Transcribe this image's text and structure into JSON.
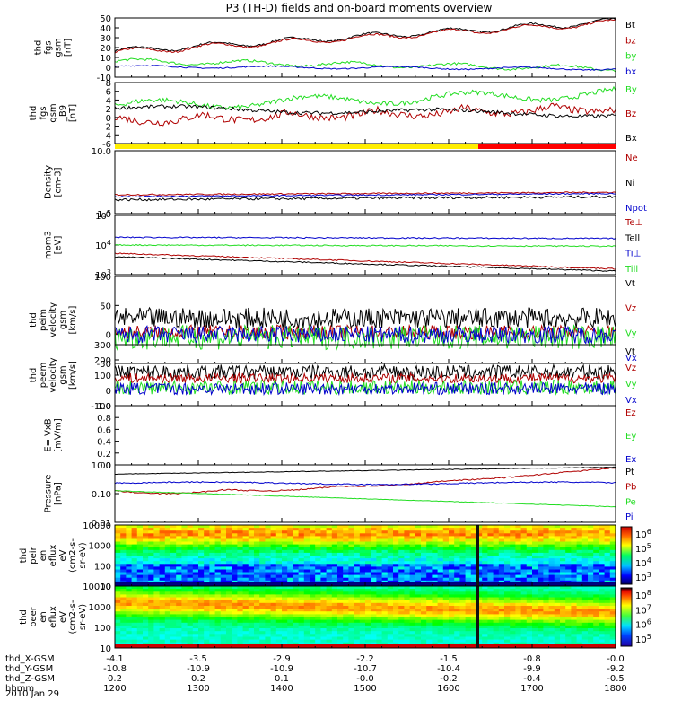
{
  "title": "P3 (TH-D) fields and on-board moments overview",
  "date_label": "2010 Jan 29",
  "colors": {
    "black": "#000000",
    "red": "#b00000",
    "bright_red": "#ff0000",
    "green": "#22dd22",
    "blue": "#0000cc",
    "yellow": "#ffee00"
  },
  "chart_data": [
    {
      "type": "line",
      "ylabel_lines": [
        "thd",
        "fgs",
        "gsm",
        "[nT]"
      ],
      "ylim": [
        -10,
        50
      ],
      "yticks": [
        "50",
        "40",
        "30",
        "20",
        "10",
        "0",
        "-10"
      ],
      "series": [
        {
          "name": "Bt",
          "color": "#000000"
        },
        {
          "name": "bz",
          "color": "#b00000"
        },
        {
          "name": "by",
          "color": "#22dd22"
        },
        {
          "name": "bx",
          "color": "#0000cc"
        }
      ]
    },
    {
      "type": "line",
      "ylabel_lines": [
        "thd",
        "fgs",
        "gsm",
        "_B9",
        "[nT]"
      ],
      "ylim": [
        -7,
        8
      ],
      "yticks": [
        "8",
        "6",
        "4",
        "2",
        "0",
        "-2",
        "-4",
        "-6"
      ],
      "series": [
        {
          "name": "By",
          "color": "#22dd22"
        },
        {
          "name": "Bz",
          "color": "#b00000"
        },
        {
          "name": "Bx",
          "color": "#000000"
        }
      ]
    },
    {
      "type": "line",
      "log": true,
      "ylabel_lines": [
        "Density",
        "[cm-3]"
      ],
      "ylim": [
        0.15,
        14
      ],
      "yticks": [
        "10.0",
        "1.0"
      ],
      "series": [
        {
          "name": "Ne",
          "color": "#b00000"
        },
        {
          "name": "Ni",
          "color": "#000000"
        },
        {
          "name": "Npot",
          "color": "#0000cc"
        }
      ]
    },
    {
      "type": "line",
      "log": true,
      "ylabel_lines": [
        "mom3",
        "[eV]"
      ],
      "ylim": [
        400,
        100000
      ],
      "yticks": [
        "10^5",
        "10^4",
        "10^3"
      ],
      "series": [
        {
          "name": "Te⊥",
          "color": "#b00000"
        },
        {
          "name": "Tell",
          "color": "#000000"
        },
        {
          "name": "Ti⊥",
          "color": "#0000cc"
        },
        {
          "name": "Till",
          "color": "#22dd22"
        }
      ]
    },
    {
      "type": "line",
      "ylabel_lines": [
        "thd",
        "peim",
        "velocity",
        "gsm",
        "[km/s]"
      ],
      "ylim": [
        -50,
        100
      ],
      "yticks": [
        "100",
        "50",
        "0",
        "-50"
      ],
      "series": [
        {
          "name": "Vt",
          "color": "#000000"
        },
        {
          "name": "Vz",
          "color": "#b00000"
        },
        {
          "name": "Vy",
          "color": "#22dd22"
        },
        {
          "name": "Vx",
          "color": "#0000cc"
        }
      ]
    },
    {
      "type": "line",
      "ylabel_lines": [
        "thd",
        "peem",
        "velocity",
        "gsm",
        "[km/s]"
      ],
      "ylim": [
        -100,
        300
      ],
      "yticks": [
        "300",
        "200",
        "100",
        "0",
        "-100"
      ],
      "series": [
        {
          "name": "Vt",
          "color": "#000000"
        },
        {
          "name": "Vz",
          "color": "#b00000"
        },
        {
          "name": "Vy",
          "color": "#22dd22"
        },
        {
          "name": "Vx",
          "color": "#0000cc"
        }
      ]
    },
    {
      "type": "line",
      "ylabel_lines": [
        "E=-VxB",
        "[mV/m]"
      ],
      "ylim": [
        0,
        1
      ],
      "yticks": [
        "1.0",
        "0.8",
        "0.6",
        "0.4",
        "0.2",
        "0.0"
      ],
      "series": [
        {
          "name": "Ez",
          "color": "#b00000"
        },
        {
          "name": "Ey",
          "color": "#22dd22"
        },
        {
          "name": "Ex",
          "color": "#0000cc"
        }
      ]
    },
    {
      "type": "line",
      "log": true,
      "ylabel_lines": [
        "Pressure",
        "[nPa]"
      ],
      "ylim": [
        0.01,
        1.2
      ],
      "yticks": [
        "1.00",
        "0.10",
        "0.01"
      ],
      "series": [
        {
          "name": "Pt",
          "color": "#000000"
        },
        {
          "name": "Pb",
          "color": "#b00000"
        },
        {
          "name": "Pe",
          "color": "#22dd22"
        },
        {
          "name": "Pi",
          "color": "#0000cc"
        }
      ]
    },
    {
      "type": "heatmap",
      "ylabel_lines": [
        "thd",
        "peir",
        "en",
        "eflux",
        "eV",
        "(cm2-s-",
        "sr-eV)"
      ],
      "yticks": [
        "10000",
        "1000",
        "100",
        "10"
      ],
      "colorbar_ticks": [
        "10^6",
        "10^5",
        "10^4",
        "10^3"
      ]
    },
    {
      "type": "heatmap",
      "ylabel_lines": [
        "thd",
        "peer",
        "en",
        "eflux",
        "eV",
        "(cm2-s-",
        "sr-eV)"
      ],
      "yticks": [
        "10000",
        "1000",
        "100",
        "10"
      ],
      "colorbar_ticks": [
        "10^8",
        "10^7",
        "10^6",
        "10^5"
      ]
    }
  ],
  "mode_bar": {
    "yellow_until": "1612",
    "red_from": "1612",
    "start": "1200",
    "end": "1800"
  },
  "x_axis": {
    "rows": [
      {
        "label": "thd_X-GSM",
        "values": [
          "-4.1",
          "-3.5",
          "-2.9",
          "-2.2",
          "-1.5",
          "-0.8",
          "-0.0"
        ]
      },
      {
        "label": "thd_Y-GSM",
        "values": [
          "-10.8",
          "-10.9",
          "-10.9",
          "-10.7",
          "-10.4",
          "-9.9",
          "-9.2"
        ]
      },
      {
        "label": "thd_Z-GSM",
        "values": [
          "0.2",
          "0.2",
          "0.1",
          "-0.0",
          "-0.2",
          "-0.4",
          "-0.5"
        ]
      },
      {
        "label": "hhmm",
        "values": [
          "1200",
          "1300",
          "1400",
          "1500",
          "1600",
          "1700",
          "1800"
        ]
      }
    ]
  }
}
